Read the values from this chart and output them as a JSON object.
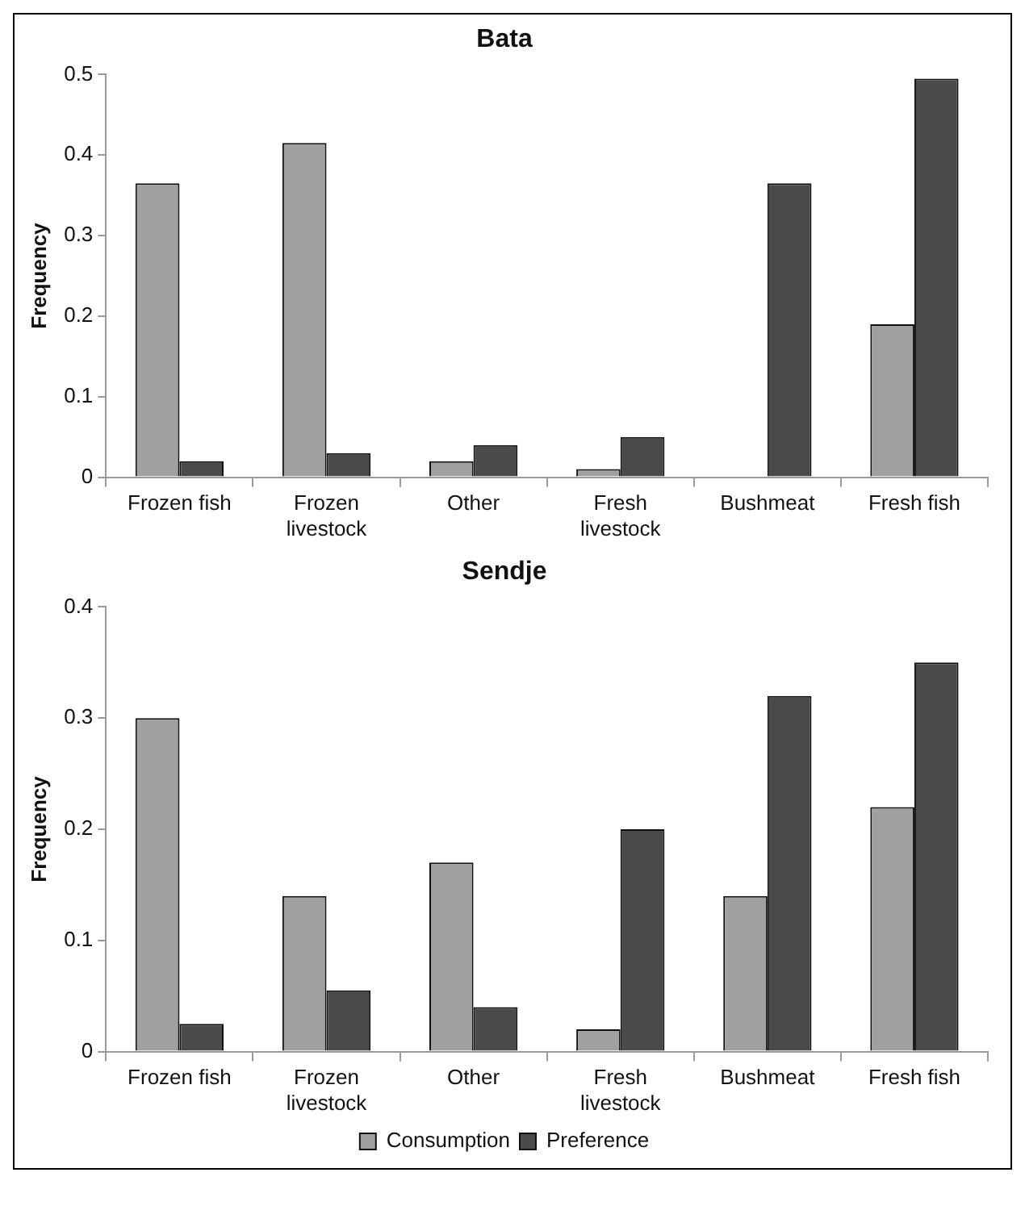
{
  "chart_data": [
    {
      "type": "bar",
      "title": "Bata",
      "ylabel": "Frequency",
      "categories": [
        "Frozen fish",
        "Frozen livestock",
        "Other",
        "Fresh livestock",
        "Bushmeat",
        "Fresh fish"
      ],
      "series": [
        {
          "color": "#a0a0a0",
          "values": [
            0.365,
            0.415,
            0.02,
            0.01,
            0,
            0.19
          ]
        },
        {
          "color": "#4a4a4a",
          "values": [
            0.02,
            0.03,
            0.04,
            0.05,
            0.365,
            0.495
          ]
        }
      ],
      "ylim": [
        0,
        0.5
      ],
      "yticks": [
        0,
        0.1,
        0.2,
        0.3,
        0.4,
        0.5
      ],
      "grid": false,
      "legend": false
    },
    {
      "type": "bar",
      "title": "Sendje",
      "ylabel": "Frequency",
      "categories": [
        "Frozen fish",
        "Frozen livestock",
        "Other",
        "Fresh livestock",
        "Bushmeat",
        "Fresh fish"
      ],
      "series": [
        {
          "name": "Consumption",
          "color": "#a0a0a0",
          "values": [
            0.3,
            0.14,
            0.17,
            0.02,
            0.14,
            0.22
          ]
        },
        {
          "name": "Preference",
          "color": "#4a4a4a",
          "values": [
            0.025,
            0.055,
            0.04,
            0.2,
            0.32,
            0.35
          ]
        }
      ],
      "ylim": [
        0,
        0.4
      ],
      "yticks": [
        0,
        0.1,
        0.2,
        0.3,
        0.4
      ],
      "grid": false,
      "legend": "bottom"
    }
  ]
}
